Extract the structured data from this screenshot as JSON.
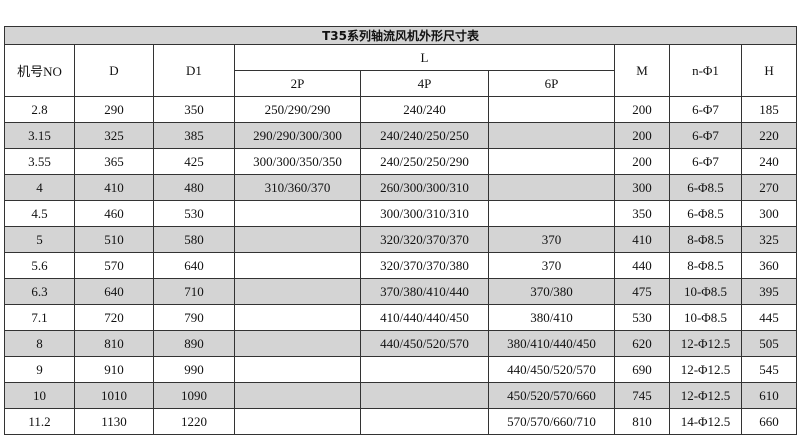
{
  "title": "T35系列轴流风机外形尺寸表",
  "headers": {
    "no": "机号NO",
    "d": "D",
    "d1": "D1",
    "l": "L",
    "p2": "2P",
    "p4": "4P",
    "p6": "6P",
    "m": "M",
    "n_phi1": "n-Φ1",
    "h": "H"
  },
  "rows": [
    [
      "2.8",
      "290",
      "350",
      "250/290/290",
      "240/240",
      "",
      "200",
      "6-Φ7",
      "185"
    ],
    [
      "3.15",
      "325",
      "385",
      "290/290/300/300",
      "240/240/250/250",
      "",
      "200",
      "6-Φ7",
      "220"
    ],
    [
      "3.55",
      "365",
      "425",
      "300/300/350/350",
      "240/250/250/290",
      "",
      "200",
      "6-Φ7",
      "240"
    ],
    [
      "4",
      "410",
      "480",
      "310/360/370",
      "260/300/300/310",
      "",
      "300",
      "6-Φ8.5",
      "270"
    ],
    [
      "4.5",
      "460",
      "530",
      "",
      "300/300/310/310",
      "",
      "350",
      "6-Φ8.5",
      "300"
    ],
    [
      "5",
      "510",
      "580",
      "",
      "320/320/370/370",
      "370",
      "410",
      "8-Φ8.5",
      "325"
    ],
    [
      "5.6",
      "570",
      "640",
      "",
      "320/370/370/380",
      "370",
      "440",
      "8-Φ8.5",
      "360"
    ],
    [
      "6.3",
      "640",
      "710",
      "",
      "370/380/410/440",
      "370/380",
      "475",
      "10-Φ8.5",
      "395"
    ],
    [
      "7.1",
      "720",
      "790",
      "",
      "410/440/440/450",
      "380/410",
      "530",
      "10-Φ8.5",
      "445"
    ],
    [
      "8",
      "810",
      "890",
      "",
      "440/450/520/570",
      "380/410/440/450",
      "620",
      "12-Φ12.5",
      "505"
    ],
    [
      "9",
      "910",
      "990",
      "",
      "",
      "440/450/520/570",
      "690",
      "12-Φ12.5",
      "545"
    ],
    [
      "10",
      "1010",
      "1090",
      "",
      "",
      "450/520/570/660",
      "745",
      "12-Φ12.5",
      "610"
    ],
    [
      "11.2",
      "1130",
      "1220",
      "",
      "",
      "570/570/660/710",
      "810",
      "14-Φ12.5",
      "660"
    ]
  ],
  "colors": {
    "shade": "#d4d4d4",
    "border": "#333333"
  }
}
